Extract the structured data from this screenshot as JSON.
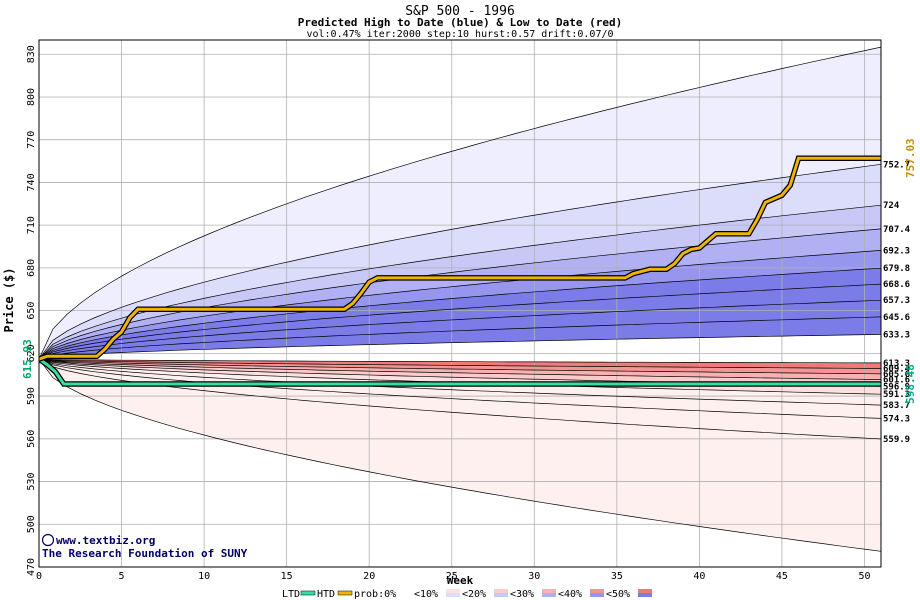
{
  "chart_data": {
    "type": "area",
    "title": "S&P 500 - 1996",
    "subtitle": "Predicted High to Date (blue) &  Low to Date (red)",
    "params": "vol:0.47% iter:2000 step:10 hurst:0.57 drift:0.07/0",
    "xlabel": "Week",
    "ylabel": "Price ($)",
    "xlim": [
      0,
      51
    ],
    "ylim": [
      470,
      840
    ],
    "x_ticks": [
      0,
      5,
      10,
      15,
      20,
      25,
      30,
      35,
      40,
      45,
      50
    ],
    "y_ticks": [
      470,
      500,
      530,
      560,
      590,
      620,
      650,
      680,
      710,
      740,
      770,
      800,
      830
    ],
    "grid": true,
    "start_value": 615.93,
    "start_label": "615.93",
    "high_to_date_label": "757.03",
    "low_to_date_label": "598.48",
    "x_tick_labels": [
      "0",
      "5",
      "10",
      "15",
      "20",
      "25",
      "30",
      "35",
      "40",
      "45",
      "50"
    ],
    "y_tick_labels": [
      "470",
      "500",
      "530",
      "560",
      "590",
      "620",
      "650",
      "680",
      "710",
      "740",
      "770",
      "800",
      "830"
    ],
    "colors": {
      "background": "#ffffff",
      "grid": "#b0b0b0",
      "htd_line": "#f0b400",
      "ltd_line": "#33e0a0",
      "start_label": "#00aa66",
      "htd_label": "#c09000",
      "ltd_label": "#00aa88",
      "blue_bands": [
        "#eeeeff",
        "#dcdcfb",
        "#c8c8f7",
        "#b0b0f2",
        "#9696ee",
        "#7c7ce8"
      ],
      "red_bands": [
        "#fff0f0",
        "#fde0e0",
        "#fbcaca",
        "#f8b0b0",
        "#f59494",
        "#f07a7a"
      ]
    },
    "blue_quantiles": [
      {
        "label": "",
        "end": 835
      },
      {
        "label": "752.7",
        "end": 752.7
      },
      {
        "label": "724",
        "end": 724
      },
      {
        "label": "707.4",
        "end": 707.4
      },
      {
        "label": "692.3",
        "end": 692.3
      },
      {
        "label": "679.8",
        "end": 679.8
      },
      {
        "label": "668.6",
        "end": 668.6
      },
      {
        "label": "657.3",
        "end": 657.3
      },
      {
        "label": "645.6",
        "end": 645.6
      },
      {
        "label": "633.3",
        "end": 633.3
      }
    ],
    "red_quantiles": [
      {
        "label": "613.3",
        "end": 613.3
      },
      {
        "label": "609.4",
        "end": 609.4
      },
      {
        "label": "605.6",
        "end": 605.6
      },
      {
        "label": "601.6",
        "end": 601.6
      },
      {
        "label": "596.9",
        "end": 596.9
      },
      {
        "label": "591.3",
        "end": 591.3
      },
      {
        "label": "583.7",
        "end": 583.7
      },
      {
        "label": "574.3",
        "end": 574.3
      },
      {
        "label": "559.9",
        "end": 559.9
      },
      {
        "label": "",
        "end": 481
      }
    ],
    "htd_series": {
      "name": "HTD",
      "x": [
        0,
        0.5,
        3.5,
        4,
        4.5,
        5,
        5.5,
        6,
        18.5,
        19,
        19.5,
        20,
        20.5,
        35.5,
        36,
        37,
        38,
        38.5,
        39,
        39.5,
        40,
        41,
        43,
        43.5,
        44,
        45,
        45.5,
        46,
        51
      ],
      "y": [
        615.93,
        618,
        618,
        623,
        630,
        635,
        645,
        651,
        651,
        655,
        662,
        670,
        673,
        673,
        676,
        679,
        679,
        683,
        690,
        693,
        694,
        704,
        704,
        714,
        726,
        731,
        738,
        757.03,
        757.03
      ]
    },
    "ltd_series": {
      "name": "LTD",
      "x": [
        0,
        0.5,
        1,
        1.5,
        51
      ],
      "y": [
        615.93,
        612,
        607,
        598.48,
        598.48
      ]
    },
    "legend": {
      "ltd": "LTD",
      "htd": "HTD",
      "prob": "prob:0%",
      "items": [
        "<10%",
        "<20%",
        "<30%",
        "<40%",
        "<50%"
      ],
      "placement": "bottom"
    },
    "watermark": {
      "line1": "www.textbiz.org",
      "line2": "The Research Foundation of SUNY"
    }
  }
}
